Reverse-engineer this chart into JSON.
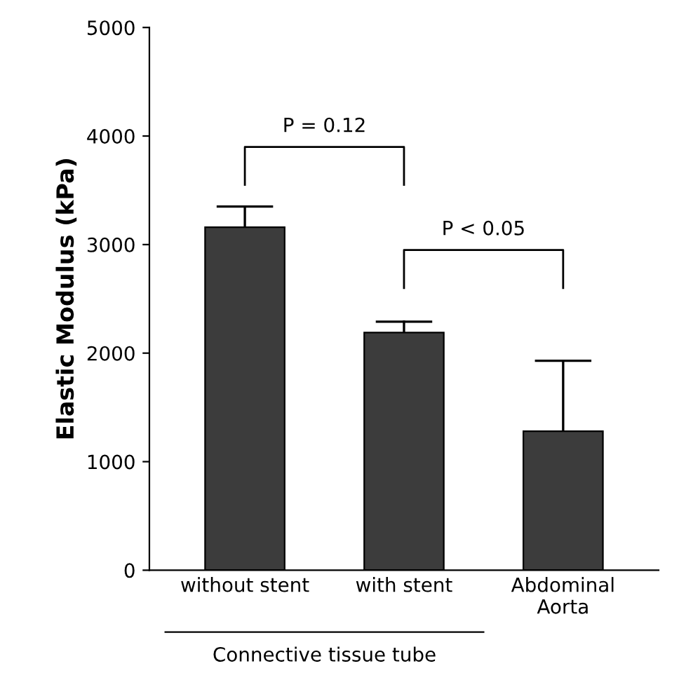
{
  "chart_data": {
    "type": "bar",
    "ylabel": "Elastic Modulus (kPa)",
    "categories": [
      "without stent",
      "with stent",
      "Abdominal\nAorta"
    ],
    "values": [
      3160,
      2190,
      1280
    ],
    "errors": [
      [
        3160,
        3350
      ],
      [
        2190,
        2290
      ],
      [
        1280,
        1930
      ]
    ],
    "color": "#3c3c3c",
    "ylim": [
      0,
      5000
    ],
    "yticks": [
      0,
      1000,
      2000,
      3000,
      4000,
      5000
    ],
    "grid": false,
    "annotations": [
      "P = 0.12",
      "P < 0.05",
      "Connective tissue tube"
    ]
  }
}
